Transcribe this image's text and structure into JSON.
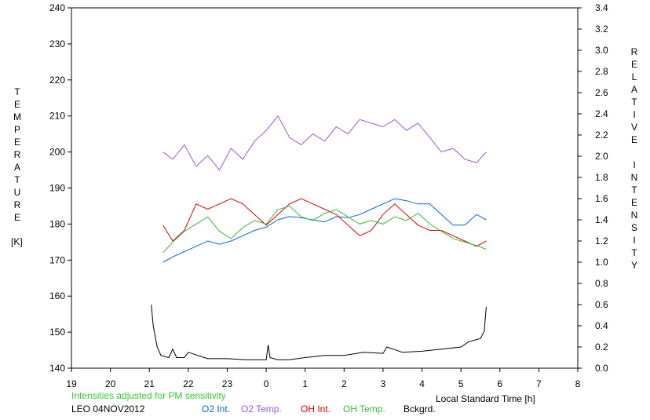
{
  "chart_data": {
    "type": "line",
    "left_axis": {
      "letters": [
        "T",
        "E",
        "M",
        "P",
        "E",
        "R",
        "A",
        "T",
        "U",
        "R",
        "E"
      ],
      "unit": "[K]",
      "range": [
        140,
        240
      ],
      "ticks": [
        "140",
        "150",
        "160",
        "170",
        "180",
        "190",
        "200",
        "210",
        "220",
        "230",
        "240"
      ]
    },
    "right_axis": {
      "letters_1": [
        "R",
        "E",
        "L",
        "A",
        "T",
        "I",
        "V",
        "E"
      ],
      "letters_2": [
        "I",
        "N",
        "T",
        "E",
        "N",
        "S",
        "I",
        "T",
        "Y"
      ],
      "range": [
        0.0,
        3.4
      ],
      "ticks": [
        "0.0",
        "0.2",
        "0.4",
        "0.6",
        "0.8",
        "1.0",
        "1.2",
        "1.4",
        "1.6",
        "1.8",
        "2.0",
        "2.2",
        "2.4",
        "2.6",
        "2.8",
        "3.0",
        "3.2",
        "3.4"
      ]
    },
    "x_axis": {
      "label": "Local Standard Time [h]",
      "range": [
        19,
        32
      ],
      "tick_labels": [
        "19",
        "20",
        "21",
        "22",
        "23",
        "0",
        "1",
        "2",
        "3",
        "4",
        "5",
        "6",
        "7",
        "8"
      ]
    },
    "note": "Intensities adjusted for PM sensitivity",
    "station": "LEO 04NOV2012",
    "colors": {
      "o2_int": "#0066dd",
      "o2_temp": "#9955dd",
      "oh_int": "#dd0000",
      "oh_temp": "#33bb33",
      "bckgrd": "#000000",
      "note": "#33cc33"
    },
    "series": [
      {
        "name": "O2 Int.",
        "axis": "right",
        "x": [
          21.35,
          21.6,
          21.9,
          22.2,
          22.5,
          22.8,
          23.1,
          23.4,
          23.7,
          24.0,
          24.3,
          24.6,
          24.9,
          25.2,
          25.5,
          25.8,
          26.1,
          26.4,
          26.7,
          27.0,
          27.3,
          27.6,
          27.9,
          28.2,
          28.5,
          28.8,
          29.1,
          29.4,
          29.65
        ],
        "values": [
          1.0,
          1.05,
          1.1,
          1.15,
          1.2,
          1.17,
          1.2,
          1.25,
          1.3,
          1.33,
          1.4,
          1.43,
          1.42,
          1.4,
          1.38,
          1.43,
          1.42,
          1.45,
          1.5,
          1.55,
          1.6,
          1.58,
          1.55,
          1.55,
          1.45,
          1.35,
          1.35,
          1.45,
          1.4
        ]
      },
      {
        "name": "O2 Temp.",
        "axis": "left",
        "x": [
          21.35,
          21.6,
          21.9,
          22.2,
          22.5,
          22.8,
          23.1,
          23.4,
          23.7,
          24.0,
          24.3,
          24.6,
          24.9,
          25.2,
          25.5,
          25.8,
          26.1,
          26.4,
          26.7,
          27.0,
          27.3,
          27.6,
          27.9,
          28.2,
          28.5,
          28.8,
          29.1,
          29.4,
          29.65
        ],
        "values": [
          200,
          198,
          202,
          196,
          199,
          195,
          201,
          198,
          203,
          206,
          210,
          204,
          202,
          205,
          203,
          207,
          205,
          209,
          208,
          207,
          209,
          206,
          208,
          204,
          200,
          201,
          198,
          197,
          200
        ]
      },
      {
        "name": "OH Int.",
        "axis": "right",
        "x": [
          21.35,
          21.6,
          21.9,
          22.2,
          22.5,
          22.8,
          23.1,
          23.4,
          23.7,
          24.0,
          24.3,
          24.6,
          24.9,
          25.2,
          25.5,
          25.8,
          26.1,
          26.4,
          26.7,
          27.0,
          27.3,
          27.6,
          27.9,
          28.2,
          28.5,
          28.8,
          29.1,
          29.4,
          29.65
        ],
        "values": [
          1.35,
          1.2,
          1.3,
          1.55,
          1.5,
          1.55,
          1.6,
          1.55,
          1.45,
          1.35,
          1.45,
          1.55,
          1.6,
          1.55,
          1.5,
          1.45,
          1.35,
          1.25,
          1.3,
          1.45,
          1.55,
          1.45,
          1.35,
          1.3,
          1.3,
          1.25,
          1.2,
          1.15,
          1.2
        ]
      },
      {
        "name": "OH Temp.",
        "axis": "left",
        "x": [
          21.35,
          21.6,
          21.9,
          22.2,
          22.5,
          22.8,
          23.1,
          23.4,
          23.7,
          24.0,
          24.3,
          24.6,
          24.9,
          25.2,
          25.5,
          25.8,
          26.1,
          26.4,
          26.7,
          27.0,
          27.3,
          27.6,
          27.9,
          28.2,
          28.5,
          28.8,
          29.1,
          29.4,
          29.65
        ],
        "values": [
          172,
          175,
          178,
          180,
          182,
          178,
          176,
          179,
          181,
          180,
          184,
          185,
          182,
          181,
          183,
          184,
          182,
          180,
          181,
          180,
          182,
          181,
          183,
          180,
          178,
          176,
          175,
          174,
          173
        ]
      },
      {
        "name": "Bckgrd.",
        "axis": "right",
        "x": [
          21.05,
          21.1,
          21.2,
          21.3,
          21.5,
          21.6,
          21.7,
          21.9,
          22.0,
          22.5,
          23.0,
          23.5,
          24.0,
          24.05,
          24.1,
          24.3,
          24.6,
          25.0,
          25.5,
          26.0,
          26.5,
          27.0,
          27.1,
          27.5,
          28.0,
          28.5,
          29.0,
          29.2,
          29.5,
          29.6,
          29.65
        ],
        "values": [
          0.6,
          0.4,
          0.2,
          0.12,
          0.1,
          0.18,
          0.1,
          0.1,
          0.15,
          0.09,
          0.09,
          0.08,
          0.08,
          0.22,
          0.1,
          0.08,
          0.08,
          0.1,
          0.12,
          0.12,
          0.15,
          0.14,
          0.2,
          0.15,
          0.16,
          0.18,
          0.2,
          0.25,
          0.28,
          0.35,
          0.58
        ]
      }
    ]
  }
}
